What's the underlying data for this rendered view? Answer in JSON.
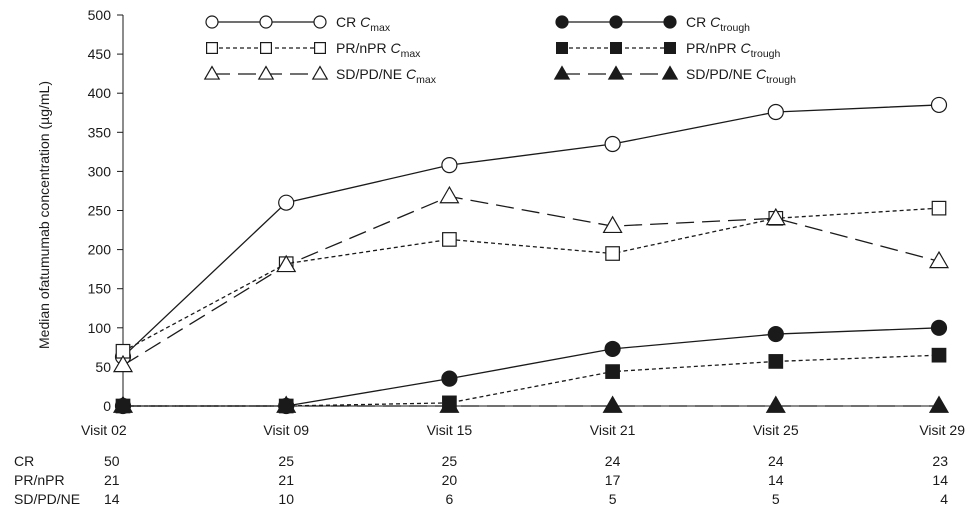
{
  "chart_data": {
    "type": "line",
    "ylabel": "Median ofatumumab concentration (µg/mL)",
    "xlabel": "",
    "categories": [
      "Visit 02",
      "Visit 09",
      "Visit 15",
      "Visit 21",
      "Visit 25",
      "Visit 29"
    ],
    "ylim": [
      0,
      500
    ],
    "yticks": [
      0,
      50,
      100,
      150,
      200,
      250,
      300,
      350,
      400,
      450,
      500
    ],
    "grid": false,
    "legend_position": "top",
    "series": [
      {
        "key": "cr_cmax",
        "base": "CR ",
        "var": "C",
        "sub": "max",
        "marker": "circle",
        "fill": "open",
        "dash": "solid",
        "values": [
          63,
          260,
          308,
          335,
          376,
          385
        ]
      },
      {
        "key": "pr_cmax",
        "base": "PR/nPR ",
        "var": "C",
        "sub": "max",
        "marker": "square",
        "fill": "open",
        "dash": "short",
        "values": [
          70,
          182,
          213,
          195,
          240,
          253
        ]
      },
      {
        "key": "sd_cmax",
        "base": "SD/PD/NE ",
        "var": "C",
        "sub": "max",
        "marker": "triangle",
        "fill": "open",
        "dash": "long",
        "values": [
          52,
          180,
          268,
          230,
          240,
          185
        ]
      },
      {
        "key": "cr_ctrough",
        "base": "CR ",
        "var": "C",
        "sub": "trough",
        "marker": "circle",
        "fill": "filled",
        "dash": "solid",
        "values": [
          0,
          0,
          35,
          73,
          92,
          100
        ]
      },
      {
        "key": "pr_ctrough",
        "base": "PR/nPR ",
        "var": "C",
        "sub": "trough",
        "marker": "square",
        "fill": "filled",
        "dash": "short",
        "values": [
          0,
          0,
          4,
          44,
          57,
          65
        ]
      },
      {
        "key": "sd_ctrough",
        "base": "SD/PD/NE ",
        "var": "C",
        "sub": "trough",
        "marker": "triangle",
        "fill": "filled",
        "dash": "long",
        "values": [
          0,
          0,
          0,
          0,
          0,
          0
        ]
      }
    ],
    "at_risk": [
      {
        "label": "CR",
        "counts": [
          "50",
          "25",
          "25",
          "24",
          "24",
          "23"
        ]
      },
      {
        "label": "PR/nPR",
        "counts": [
          "21",
          "21",
          "20",
          "17",
          "14",
          "14"
        ]
      },
      {
        "label": "SD/PD/NE",
        "counts": [
          "14",
          "10",
          "6",
          "5",
          "5",
          "4"
        ]
      }
    ],
    "colors": {
      "line": "#1a1a1a",
      "open_fill": "#ffffff"
    }
  }
}
